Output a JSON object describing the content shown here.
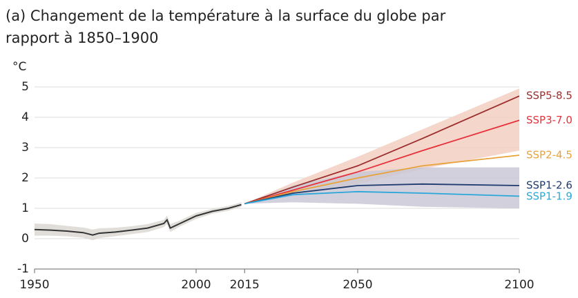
{
  "chart_data": {
    "type": "line",
    "title": [
      "(a) Changement de la température à la surface du globe par",
      "rapport à 1850–1900"
    ],
    "y_label": "°C",
    "xlim": [
      1950,
      2100
    ],
    "xticks": [
      1950,
      2000,
      2015,
      2050,
      2100
    ],
    "ylim": [
      -1,
      5
    ],
    "yticks": [
      -1,
      0,
      1,
      2,
      3,
      4,
      5
    ],
    "grid": true,
    "historical": {
      "color": "#333333",
      "band_color": "#dcd8d2",
      "x": [
        1950,
        1955,
        1960,
        1965,
        1968,
        1970,
        1975,
        1980,
        1985,
        1990,
        1991,
        1992,
        1995,
        2000,
        2005,
        2010,
        2014
      ],
      "values": [
        0.3,
        0.28,
        0.25,
        0.2,
        0.12,
        0.18,
        0.22,
        0.28,
        0.35,
        0.5,
        0.62,
        0.35,
        0.5,
        0.75,
        0.9,
        1.0,
        1.12
      ],
      "lower": [
        0.1,
        0.1,
        0.08,
        0.03,
        -0.05,
        0.02,
        0.08,
        0.15,
        0.22,
        0.38,
        0.48,
        0.22,
        0.4,
        0.65,
        0.82,
        0.92,
        1.05
      ],
      "upper": [
        0.5,
        0.48,
        0.42,
        0.37,
        0.3,
        0.34,
        0.36,
        0.41,
        0.48,
        0.62,
        0.76,
        0.48,
        0.6,
        0.85,
        0.98,
        1.08,
        1.2
      ]
    },
    "x": [
      2015,
      2030,
      2050,
      2070,
      2100
    ],
    "bands": [
      {
        "color": "#f2cfc2",
        "lower": [
          1.15,
          1.4,
          1.8,
          2.3,
          2.9
        ],
        "upper": [
          1.15,
          1.85,
          2.7,
          3.6,
          4.95
        ]
      },
      {
        "color": "#c9c8d6",
        "lower": [
          1.15,
          1.2,
          1.15,
          1.05,
          1.0
        ],
        "upper": [
          1.15,
          1.75,
          2.2,
          2.35,
          2.35
        ]
      }
    ],
    "series": [
      {
        "name": "SSP5-8.5",
        "color": "#9b2d2d",
        "values": [
          1.15,
          1.7,
          2.4,
          3.3,
          4.7
        ]
      },
      {
        "name": "SSP3-7.0",
        "color": "#e8303a",
        "values": [
          1.15,
          1.6,
          2.2,
          2.9,
          3.9
        ]
      },
      {
        "name": "SSP2-4.5",
        "color": "#e8a23a",
        "values": [
          1.15,
          1.55,
          2.0,
          2.4,
          2.75
        ]
      },
      {
        "name": "SSP1-2.6",
        "color": "#1e3a6e",
        "values": [
          1.15,
          1.5,
          1.75,
          1.8,
          1.75
        ]
      },
      {
        "name": "SSP1-1.9",
        "color": "#2aa7d9",
        "values": [
          1.15,
          1.45,
          1.55,
          1.5,
          1.4
        ]
      }
    ]
  }
}
